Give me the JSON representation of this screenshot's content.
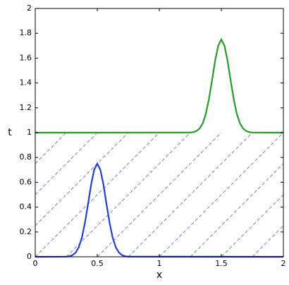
{
  "chart_data": {
    "type": "line",
    "xlabel": "x",
    "ylabel": "t",
    "xlim": [
      0,
      2
    ],
    "ylim": [
      0,
      2
    ],
    "xticks": [
      0,
      0.5,
      1,
      1.5,
      2
    ],
    "yticks": [
      0,
      0.2,
      0.4,
      0.6,
      0.8,
      1,
      1.2,
      1.4,
      1.6,
      1.8,
      2
    ],
    "grid": false,
    "series": [
      {
        "color": "#1f3fe0",
        "x": [
          0,
          0.25,
          0.275,
          0.3,
          0.325,
          0.35,
          0.375,
          0.4,
          0.425,
          0.45,
          0.475,
          0.5,
          0.525,
          0.55,
          0.575,
          0.6,
          0.625,
          0.65,
          0.675,
          0.7,
          0.725,
          0.75,
          2
        ],
        "values": [
          0,
          0.001,
          0.004,
          0.013,
          0.033,
          0.075,
          0.15,
          0.27,
          0.42,
          0.58,
          0.7,
          0.75,
          0.7,
          0.58,
          0.42,
          0.27,
          0.15,
          0.075,
          0.033,
          0.013,
          0.004,
          0.001,
          0
        ]
      },
      {
        "color": "#22a01f",
        "x": [
          0,
          1.25,
          1.275,
          1.3,
          1.325,
          1.35,
          1.375,
          1.4,
          1.425,
          1.45,
          1.475,
          1.5,
          1.525,
          1.55,
          1.575,
          1.6,
          1.625,
          1.65,
          1.675,
          1.7,
          1.725,
          1.75,
          2
        ],
        "values": [
          1,
          1.001,
          1.004,
          1.013,
          1.033,
          1.075,
          1.15,
          1.27,
          1.42,
          1.58,
          1.7,
          1.75,
          1.7,
          1.58,
          1.42,
          1.27,
          1.15,
          1.075,
          1.033,
          1.013,
          1.004,
          1.001,
          1
        ]
      }
    ],
    "characteristics": {
      "color": "#4a68e0",
      "lines": [
        {
          "x": [
            0,
            0.25
          ],
          "values": [
            0.75,
            1
          ]
        },
        {
          "x": [
            0,
            0.5
          ],
          "values": [
            0.5,
            1
          ]
        },
        {
          "x": [
            0,
            0.75
          ],
          "values": [
            0.25,
            1
          ]
        },
        {
          "x": [
            0,
            1
          ],
          "values": [
            0,
            1
          ]
        },
        {
          "x": [
            0.25,
            1.25
          ],
          "values": [
            0,
            1
          ]
        },
        {
          "x": [
            0.5,
            1.5
          ],
          "values": [
            0,
            1
          ]
        },
        {
          "x": [
            0.75,
            1.75
          ],
          "values": [
            0,
            1
          ]
        },
        {
          "x": [
            1,
            2
          ],
          "values": [
            0,
            1
          ]
        },
        {
          "x": [
            1.25,
            2
          ],
          "values": [
            0,
            0.75
          ]
        },
        {
          "x": [
            1.5,
            2
          ],
          "values": [
            0,
            0.5
          ]
        },
        {
          "x": [
            1.75,
            2
          ],
          "values": [
            0,
            0.25
          ]
        }
      ]
    }
  }
}
